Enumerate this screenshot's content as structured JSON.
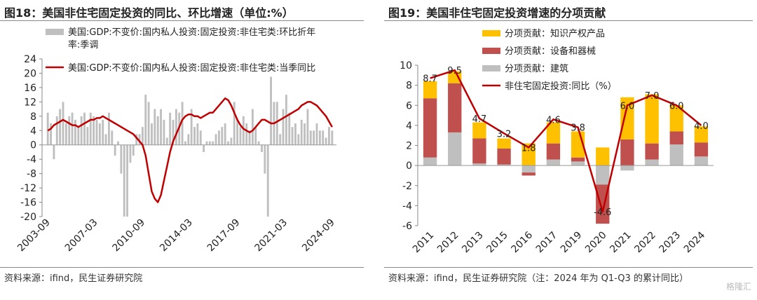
{
  "left": {
    "title": "图18：美国非住宅固定投资的同比、环比增速（单位:%）",
    "source": "资料来源：ifind，民生证券研究院",
    "legend": [
      "美国:GDP:不变价:国内私人投资:固定投资:非住宅类:环比折年率:季调",
      "美国:GDP:不变价:国内私人投资:固定投资:非住宅类:当季同比"
    ],
    "colors": {
      "bar": "#bfbfbf",
      "line": "#c00000"
    }
  },
  "right": {
    "title": "图19：美国非住宅固定投资增速的分项贡献",
    "source": "资料来源：ifind，民生证券研究院（注：2024 年为 Q1-Q3 的累计同比）",
    "legend": [
      "分项贡献：知识产权产品",
      "分项贡献：设备和器械",
      "分项贡献：建筑",
      "非住宅固定投资:同比（%）"
    ],
    "colors": {
      "ip": "#ffc000",
      "equip": "#c0504d",
      "struct": "#bfbfbf",
      "line": "#c00000"
    }
  },
  "watermark": "格隆汇",
  "chart_data": [
    {
      "type": "bar+line",
      "ylim": [
        -20,
        24
      ],
      "yticks": [
        -20,
        -16,
        -12,
        -8,
        -4,
        0,
        4,
        8,
        12,
        16,
        20,
        24
      ],
      "xticks": [
        "2003-09",
        "2007-03",
        "2010-09",
        "2014-03",
        "2017-09",
        "2021-03",
        "2024-09"
      ],
      "x_start": "2003-09",
      "x_end": "2024-09",
      "series": [
        {
          "name": "美国:GDP:不变价:国内私人投资:固定投资:非住宅类:环比折年率:季调",
          "kind": "bar",
          "values": [
            9,
            6,
            -4,
            8,
            10,
            12,
            6,
            8,
            9,
            7,
            5,
            8,
            9,
            5,
            9,
            8,
            7,
            6,
            7,
            3,
            9,
            4,
            -3,
            1,
            -8,
            -20,
            -20,
            -5,
            -3,
            3,
            3,
            5,
            14,
            12,
            6,
            10,
            8,
            10,
            7,
            2,
            9,
            7,
            10,
            9,
            12,
            1,
            3,
            10,
            5,
            6,
            4,
            -2,
            1,
            1,
            1,
            3,
            4,
            5,
            6,
            1,
            2,
            12,
            7,
            5,
            8,
            6,
            4,
            10,
            5,
            1,
            -2,
            -8,
            -20,
            19,
            12,
            12,
            3,
            10,
            14,
            9,
            5,
            6,
            3,
            7,
            6,
            10,
            4,
            4,
            6,
            4,
            4,
            2,
            5,
            4
          ]
        },
        {
          "name": "美国:GDP:不变价:国内私人投资:固定投资:非住宅类:当季同比",
          "kind": "line",
          "values": [
            4,
            4.5,
            5.5,
            6,
            6.5,
            7,
            6.5,
            6,
            5.5,
            5.5,
            5,
            5.5,
            6,
            6.5,
            7,
            7,
            7.5,
            7.5,
            8,
            7.5,
            7,
            6.5,
            6,
            5.5,
            5,
            4.5,
            4,
            3.5,
            3,
            2,
            1,
            0,
            -3,
            -8,
            -13,
            -15,
            -16,
            -14,
            -10,
            -6,
            -2,
            1,
            3,
            5,
            7,
            8,
            8.5,
            8.5,
            8,
            8,
            7.5,
            8,
            8.5,
            9,
            9,
            10,
            11,
            12,
            13,
            12.5,
            11,
            9,
            7,
            5.5,
            4.5,
            4,
            3.5,
            4,
            5,
            6,
            7,
            7,
            6.5,
            6,
            6,
            6.5,
            7,
            7.5,
            8,
            8.5,
            9,
            9.5,
            10,
            11,
            11.5,
            12,
            12,
            11.5,
            11,
            10,
            9,
            8,
            6.5,
            5
          ]
        }
      ]
    },
    {
      "type": "stacked-bar+line",
      "ylim": [
        -6,
        10
      ],
      "yticks": [
        -6,
        -4,
        -2,
        0,
        2,
        4,
        6,
        8,
        10
      ],
      "categories": [
        "2011",
        "2012",
        "2013",
        "2015",
        "2016",
        "2017",
        "2019",
        "2020",
        "2021",
        "2022",
        "2023",
        "2024"
      ],
      "series": [
        {
          "name": "分项贡献：知识产权产品",
          "kind": "bar",
          "values": [
            1.7,
            1.2,
            1.6,
            1.0,
            2.2,
            2.1,
            2.6,
            1.8,
            4.2,
            4.9,
            2.6,
            1.6
          ]
        },
        {
          "name": "分项贡献：设备和器械",
          "kind": "bar",
          "values": [
            5.9,
            4.9,
            2.5,
            1.6,
            -0.3,
            1.6,
            0.4,
            -3.9,
            2.6,
            1.6,
            1.3,
            1.4
          ]
        },
        {
          "name": "分项贡献：建筑",
          "kind": "bar",
          "values": [
            0.8,
            3.3,
            0.2,
            0.1,
            -0.7,
            0.6,
            0.4,
            -1.9,
            -0.5,
            0.6,
            2.1,
            0.9
          ]
        },
        {
          "name": "非住宅固定投资:同比（%）",
          "kind": "line",
          "values": [
            8.7,
            9.5,
            4.7,
            3.2,
            1.8,
            4.6,
            3.8,
            -4.6,
            6.0,
            7.0,
            6.0,
            4.0
          ],
          "labels": [
            "8.7",
            "9.5",
            "4.7",
            "3.2",
            "1.8",
            "4.6",
            "3.8",
            "-4.6",
            "6.0",
            "7.0",
            "6.0",
            "4.0"
          ]
        }
      ]
    }
  ]
}
